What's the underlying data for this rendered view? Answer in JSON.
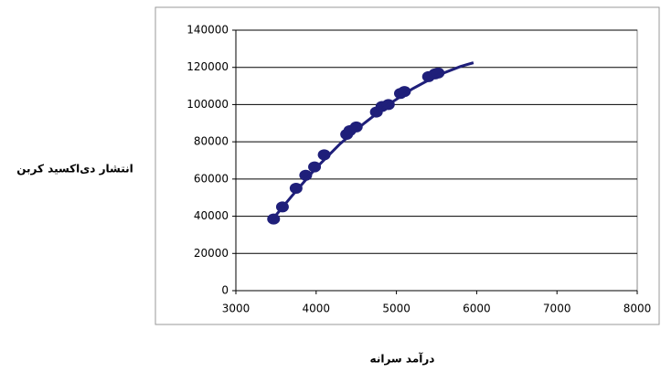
{
  "chart_data": {
    "type": "scatter",
    "y_label": "انتشار دی‌اکسید کربن",
    "x_label": "درآمد سرانه",
    "xlim": [
      3000,
      8000
    ],
    "xticks": [
      3000,
      4000,
      5000,
      6000,
      7000,
      8000
    ],
    "ylim": [
      0,
      140000
    ],
    "yticks": [
      0,
      20000,
      40000,
      60000,
      80000,
      100000,
      120000,
      140000
    ],
    "grid": true,
    "series": [
      {
        "style": "marker",
        "color": "#1f1f7a",
        "x": [
          3470,
          3580,
          3750,
          3870,
          3980,
          4100,
          4380,
          4420,
          4500,
          4750,
          4820,
          4900,
          5050,
          5100,
          5400,
          5480,
          5520
        ],
        "values": [
          38500,
          45000,
          55000,
          62000,
          66500,
          73000,
          84000,
          86000,
          88000,
          96000,
          99000,
          100000,
          106000,
          107000,
          115000,
          116500,
          117000
        ]
      },
      {
        "style": "line",
        "color": "#1f1f7a",
        "x": [
          3450,
          3700,
          4000,
          4300,
          4600,
          4900,
          5200,
          5500,
          5800,
          5960
        ],
        "values": [
          38000,
          51000,
          66000,
          79000,
          90000,
          100000,
          108500,
          115500,
          120500,
          122500
        ]
      }
    ]
  }
}
